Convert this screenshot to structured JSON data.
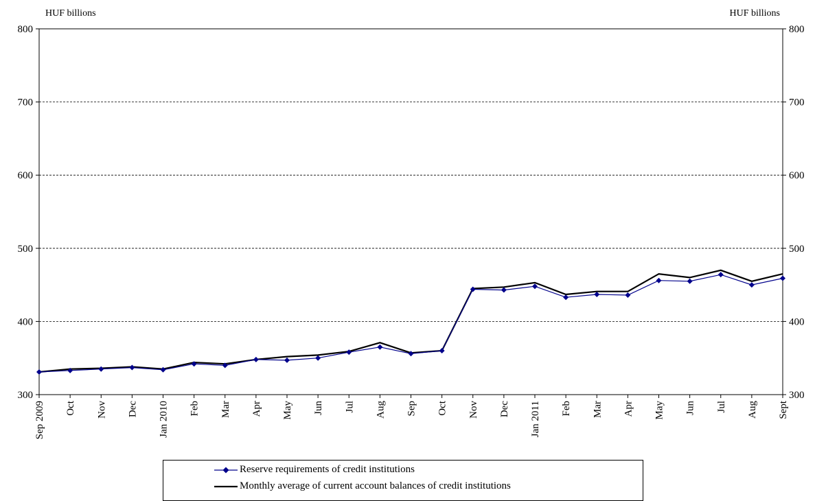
{
  "chart_data": {
    "type": "line",
    "ylabel_left": "HUF billions",
    "ylabel_right": "HUF billions",
    "ylim": [
      300,
      800
    ],
    "yticks": [
      300,
      400,
      500,
      600,
      700,
      800
    ],
    "grid": "horizontal-dashed",
    "legend_position": "bottom",
    "categories": [
      "Sep 2009",
      "Oct",
      "Nov",
      "Dec",
      "Jan 2010",
      "Feb",
      "Mar",
      "Apr",
      "May",
      "Jun",
      "Jul",
      "Aug",
      "Sep",
      "Oct",
      "Nov",
      "Dec",
      "Jan 2011",
      "Feb",
      "Mar",
      "Apr",
      "May",
      "Jun",
      "Jul",
      "Aug",
      "Sept"
    ],
    "series": [
      {
        "name": "Reserve requirements of credit institutions",
        "color": "#00008b",
        "marker": "diamond",
        "values": [
          331,
          333,
          335,
          337,
          334,
          342,
          340,
          348,
          347,
          350,
          358,
          365,
          356,
          360,
          444,
          443,
          448,
          433,
          437,
          436,
          456,
          455,
          464,
          450,
          459
        ]
      },
      {
        "name": "Monthly average of current account balances of credit institutions",
        "color": "#000000",
        "marker": "none",
        "values": [
          331,
          335,
          336,
          338,
          335,
          344,
          342,
          348,
          352,
          354,
          359,
          371,
          357,
          360,
          445,
          447,
          453,
          437,
          441,
          441,
          465,
          460,
          470,
          455,
          465
        ]
      }
    ]
  }
}
